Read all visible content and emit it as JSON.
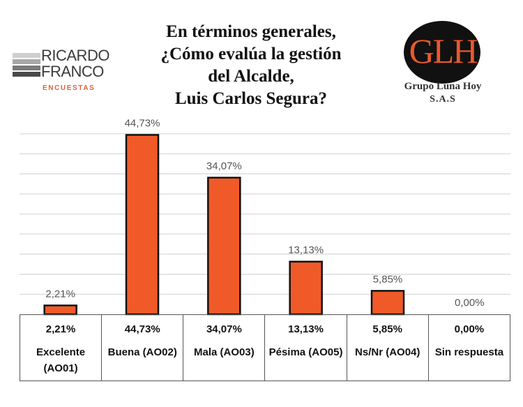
{
  "title_lines": [
    "En términos generales,",
    "¿Cómo evalúa la gestión",
    "del Alcalde,",
    "Luis Carlos Segura?"
  ],
  "logos": {
    "left": {
      "line1": "RICARDO",
      "line2": "FRANCO",
      "sub": "ENCUESTAS"
    },
    "right": {
      "mark": "GLH",
      "name": "Grupo Luna Hoy",
      "sub": "S.A.S"
    }
  },
  "colors": {
    "bar": "#f05a28",
    "bar_border": "#111111",
    "grid": "#d0d0d0"
  },
  "chart_data": {
    "type": "bar",
    "categories": [
      "Excelente (AO01)",
      "Buena (AO02)",
      "Mala (AO03)",
      "Pésima (AO05)",
      "Ns/Nr (AO04)",
      "Sin respuesta"
    ],
    "values": [
      2.21,
      44.73,
      34.07,
      13.13,
      5.85,
      0.0
    ],
    "value_labels": [
      "2,21%",
      "44,73%",
      "34,07%",
      "13,13%",
      "5,85%",
      "0,00%"
    ],
    "ylim": [
      0,
      45
    ],
    "grid": true,
    "legend": "none",
    "data_table": true
  }
}
